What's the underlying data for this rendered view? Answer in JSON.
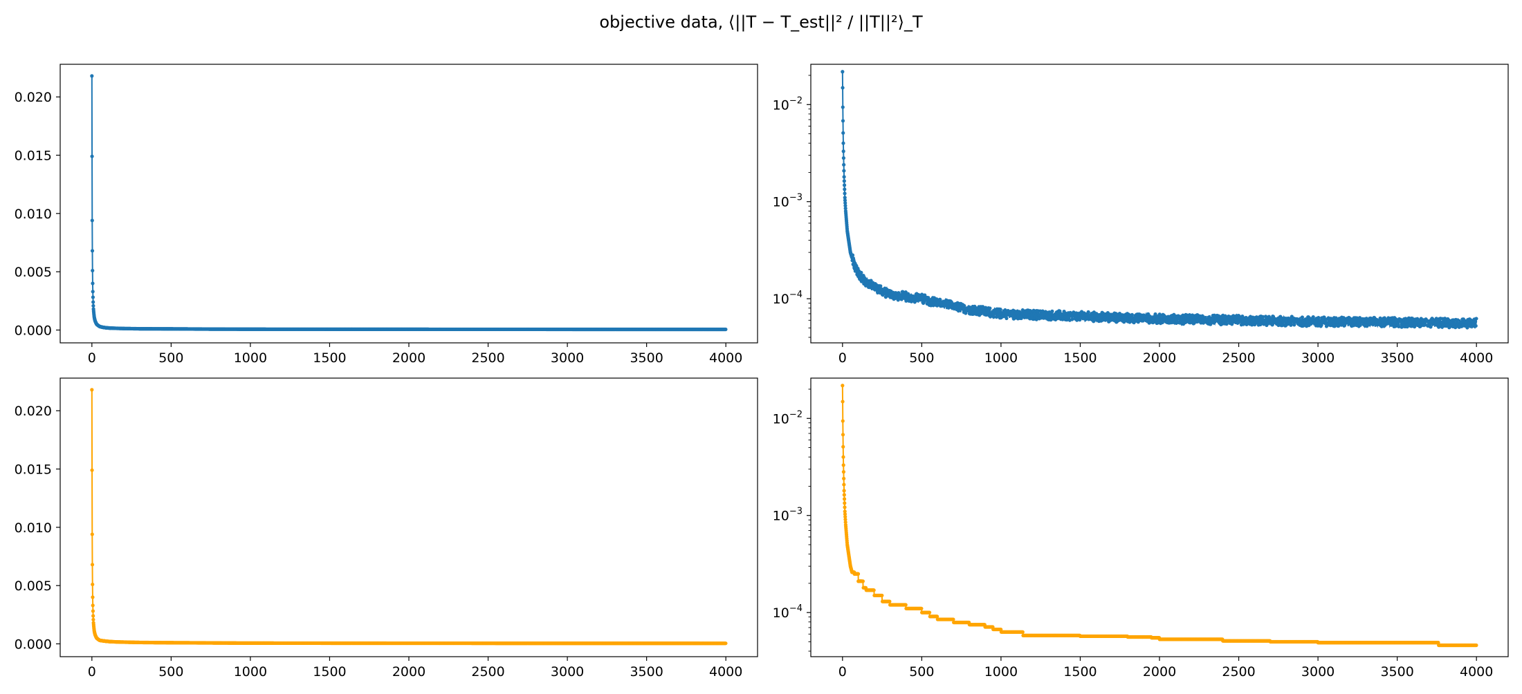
{
  "figure": {
    "title": "objective data, ⟨||T − T_est||² / ||T||²⟩_T",
    "colors": {
      "blue": "#1f77b4",
      "orange": "#ffa500"
    }
  },
  "chart_data": [
    {
      "type": "line",
      "scale": "linear",
      "color": "#1f77b4",
      "xlim": [
        -200,
        4200
      ],
      "ylim": [
        -0.0011,
        0.0228
      ],
      "x_ticks": [
        0,
        500,
        1000,
        1500,
        2000,
        2500,
        3000,
        3500,
        4000
      ],
      "y_ticks": [
        0.0,
        0.005,
        0.01,
        0.015,
        0.02
      ],
      "y_tick_labels": [
        "0.000",
        "0.005",
        "0.010",
        "0.015",
        "0.020"
      ],
      "x_tick_labels": [
        "0",
        "500",
        "1000",
        "1500",
        "2000",
        "2500",
        "3000",
        "3500",
        "4000"
      ],
      "series": [
        {
          "x": [
            0,
            1,
            2,
            3,
            4,
            5,
            6,
            8,
            10,
            15,
            20,
            30,
            50,
            75,
            100,
            150,
            200,
            300,
            500,
            750,
            1000,
            1500,
            2000,
            2500,
            3000,
            3500,
            4000
          ],
          "values": [
            0.0218,
            0.0149,
            0.0094,
            0.0068,
            0.0051,
            0.004,
            0.0033,
            0.0024,
            0.0018,
            0.0011,
            0.0008,
            0.0005,
            0.0003,
            0.00022,
            0.00018,
            0.00015,
            0.00013,
            0.00011,
            0.0001,
            8e-05,
            7e-05,
            6.6e-05,
            6.2e-05,
            6e-05,
            5.8e-05,
            5.7e-05,
            5.6e-05
          ]
        }
      ],
      "grid": false
    },
    {
      "type": "line",
      "scale": "log",
      "color": "#1f77b4",
      "xlim": [
        -200,
        4200
      ],
      "ylim": [
        3.51e-05,
        0.026
      ],
      "x_ticks": [
        0,
        500,
        1000,
        1500,
        2000,
        2500,
        3000,
        3500,
        4000
      ],
      "x_tick_labels": [
        "0",
        "500",
        "1000",
        "1500",
        "2000",
        "2500",
        "3000",
        "3500",
        "4000"
      ],
      "y_ticks": [
        0.0001,
        0.001,
        0.01
      ],
      "y_tick_bases": [
        "10",
        "10",
        "10"
      ],
      "y_tick_exps": [
        "−4",
        "−3",
        "−2"
      ],
      "series": [
        {
          "x": [
            0,
            1,
            2,
            3,
            4,
            5,
            6,
            8,
            10,
            15,
            20,
            30,
            50,
            75,
            100,
            150,
            200,
            300,
            500,
            750,
            1000,
            1500,
            2000,
            2500,
            3000,
            3500,
            4000
          ],
          "values": [
            0.0218,
            0.0149,
            0.0094,
            0.0068,
            0.0051,
            0.004,
            0.0033,
            0.0024,
            0.0018,
            0.0011,
            0.0008,
            0.0005,
            0.0003,
            0.00022,
            0.00018,
            0.00015,
            0.00013,
            0.00011,
            0.0001,
            8e-05,
            7e-05,
            6.6e-05,
            6.2e-05,
            6e-05,
            5.8e-05,
            5.7e-05,
            5.6e-05
          ]
        }
      ],
      "noisy": true,
      "grid": false
    },
    {
      "type": "line",
      "scale": "linear",
      "color": "#ffa500",
      "xlim": [
        -200,
        4200
      ],
      "ylim": [
        -0.0011,
        0.0228
      ],
      "x_ticks": [
        0,
        500,
        1000,
        1500,
        2000,
        2500,
        3000,
        3500,
        4000
      ],
      "x_tick_labels": [
        "0",
        "500",
        "1000",
        "1500",
        "2000",
        "2500",
        "3000",
        "3500",
        "4000"
      ],
      "y_ticks": [
        0.0,
        0.005,
        0.01,
        0.015,
        0.02
      ],
      "y_tick_labels": [
        "0.000",
        "0.005",
        "0.010",
        "0.015",
        "0.020"
      ],
      "series": [
        {
          "x": [
            0,
            1,
            2,
            3,
            4,
            5,
            6,
            8,
            10,
            15,
            20,
            30,
            50,
            75,
            100,
            150,
            200,
            300,
            500,
            750,
            1000,
            1500,
            2000,
            2500,
            3000,
            3500,
            4000
          ],
          "values": [
            0.0218,
            0.0149,
            0.0094,
            0.0068,
            0.0051,
            0.004,
            0.0033,
            0.0024,
            0.0018,
            0.0011,
            0.0008,
            0.0005,
            0.0003,
            0.00025,
            0.00021,
            0.00017,
            0.00015,
            0.00012,
            0.0001,
            8.2e-05,
            6.3e-05,
            5.8e-05,
            5.3e-05,
            5.1e-05,
            4.9e-05,
            4.8e-05,
            4.6e-05
          ]
        }
      ],
      "grid": false
    },
    {
      "type": "line",
      "scale": "log",
      "color": "#ffa500",
      "xlim": [
        -200,
        4200
      ],
      "ylim": [
        3.51e-05,
        0.026
      ],
      "x_ticks": [
        0,
        500,
        1000,
        1500,
        2000,
        2500,
        3000,
        3500,
        4000
      ],
      "x_tick_labels": [
        "0",
        "500",
        "1000",
        "1500",
        "2000",
        "2500",
        "3000",
        "3500",
        "4000"
      ],
      "y_ticks": [
        0.0001,
        0.001,
        0.01
      ],
      "y_tick_bases": [
        "10",
        "10",
        "10"
      ],
      "y_tick_exps": [
        "−4",
        "−3",
        "−2"
      ],
      "series": [
        {
          "x": [
            0,
            1,
            2,
            3,
            4,
            5,
            6,
            8,
            10,
            15,
            20,
            30,
            50,
            60,
            75,
            100,
            130,
            150,
            200,
            250,
            300,
            400,
            500,
            550,
            600,
            700,
            800,
            900,
            950,
            1000,
            1130,
            1140,
            1500,
            1800,
            1950,
            2000,
            2350,
            2400,
            2700,
            3000,
            3500,
            3700,
            3760,
            4000
          ],
          "values": [
            0.0218,
            0.0149,
            0.0094,
            0.0068,
            0.0051,
            0.004,
            0.0033,
            0.0024,
            0.0018,
            0.0011,
            0.0008,
            0.0005,
            0.0003,
            0.00026,
            0.00025,
            0.00021,
            0.00018,
            0.00017,
            0.00015,
            0.00013,
            0.00012,
            0.00011,
            0.0001,
            9.1e-05,
            8.5e-05,
            7.9e-05,
            7.5e-05,
            7.1e-05,
            6.7e-05,
            6.3e-05,
            6.3e-05,
            5.8e-05,
            5.7e-05,
            5.6e-05,
            5.5e-05,
            5.3e-05,
            5.3e-05,
            5.1e-05,
            5e-05,
            4.9e-05,
            4.9e-05,
            4.9e-05,
            4.6e-05,
            4.6e-05
          ]
        }
      ],
      "stepped": true,
      "grid": false
    }
  ]
}
